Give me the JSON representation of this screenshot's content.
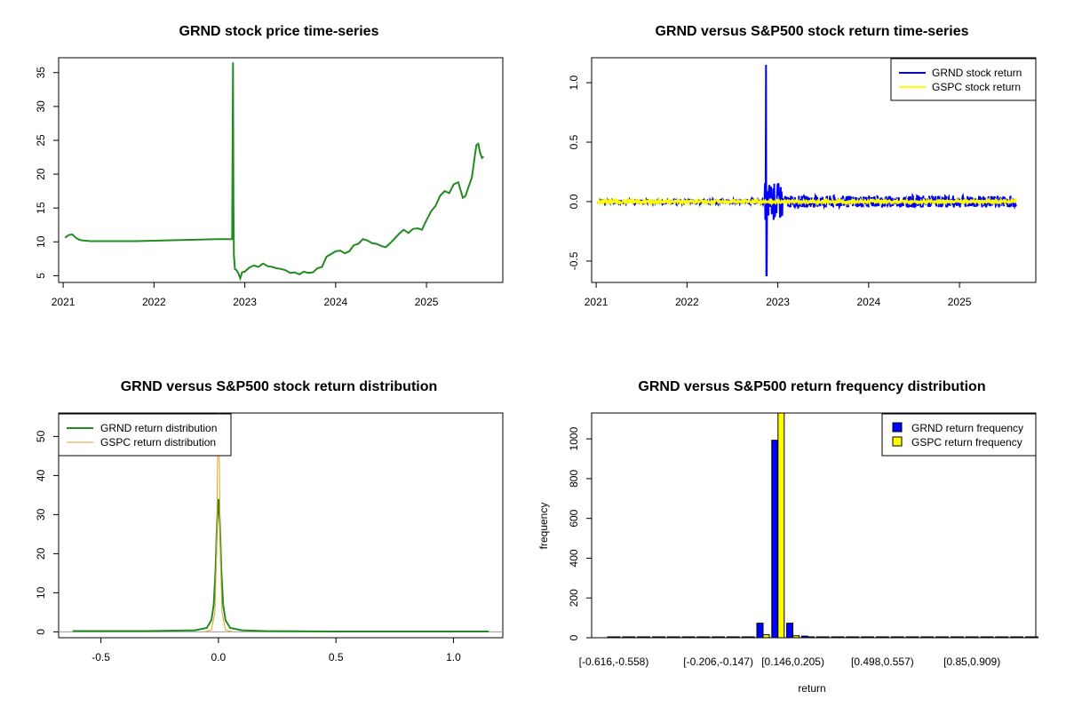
{
  "chart_data": [
    {
      "id": "price",
      "type": "line",
      "title": "GRND stock price time-series",
      "xlabel": "",
      "ylabel": "",
      "xlim": [
        2020.95,
        2025.84
      ],
      "ylim": [
        4.0,
        37.2
      ],
      "x_ticks": [
        2021,
        2022,
        2023,
        2024,
        2025
      ],
      "x_tick_labels": [
        "2021",
        "2022",
        "2023",
        "2024",
        "2025"
      ],
      "y_ticks": [
        5,
        10,
        15,
        20,
        25,
        30,
        35
      ],
      "y_tick_labels": [
        "5",
        "10",
        "15",
        "20",
        "25",
        "30",
        "35"
      ],
      "series": [
        {
          "name": "GRND price",
          "color": "#228B22",
          "x": [
            2021.02,
            2021.06,
            2021.1,
            2021.14,
            2021.18,
            2021.22,
            2021.3,
            2021.5,
            2021.8,
            2022.1,
            2022.4,
            2022.7,
            2022.86,
            2022.87,
            2022.875,
            2022.88,
            2022.885,
            2022.89,
            2022.91,
            2022.93,
            2022.95,
            2022.97,
            2023.0,
            2023.05,
            2023.1,
            2023.15,
            2023.2,
            2023.25,
            2023.3,
            2023.35,
            2023.4,
            2023.45,
            2023.5,
            2023.55,
            2023.6,
            2023.65,
            2023.7,
            2023.75,
            2023.8,
            2023.85,
            2023.9,
            2023.95,
            2024.0,
            2024.05,
            2024.1,
            2024.15,
            2024.2,
            2024.25,
            2024.3,
            2024.35,
            2024.4,
            2024.45,
            2024.5,
            2024.55,
            2024.6,
            2024.65,
            2024.7,
            2024.75,
            2024.8,
            2024.85,
            2024.9,
            2024.95,
            2025.0,
            2025.05,
            2025.1,
            2025.15,
            2025.2,
            2025.25,
            2025.3,
            2025.35,
            2025.4,
            2025.43,
            2025.46,
            2025.5,
            2025.53,
            2025.55,
            2025.57,
            2025.59,
            2025.61,
            2025.63
          ],
          "y": [
            10.6,
            11.0,
            11.1,
            10.6,
            10.3,
            10.2,
            10.1,
            10.1,
            10.1,
            10.2,
            10.3,
            10.4,
            10.4,
            36.5,
            16.0,
            8.0,
            7.0,
            6.0,
            5.8,
            5.3,
            4.6,
            5.5,
            5.6,
            6.2,
            6.5,
            6.3,
            6.8,
            6.4,
            6.3,
            6.1,
            6.0,
            5.8,
            5.4,
            5.5,
            5.2,
            5.6,
            5.4,
            5.5,
            6.1,
            6.3,
            7.8,
            8.2,
            8.6,
            8.7,
            8.3,
            8.6,
            9.5,
            9.7,
            10.4,
            10.2,
            9.8,
            9.7,
            9.4,
            9.2,
            9.8,
            10.5,
            11.2,
            11.8,
            11.3,
            11.9,
            12.0,
            11.8,
            13.2,
            14.5,
            15.3,
            16.8,
            17.5,
            17.2,
            18.5,
            18.8,
            16.5,
            16.8,
            18.0,
            19.5,
            22.5,
            24.3,
            24.5,
            23.2,
            22.4,
            22.6
          ]
        }
      ]
    },
    {
      "id": "returns",
      "type": "line",
      "title": "GRND versus S&P500 stock return time-series",
      "xlabel": "",
      "ylabel": "",
      "xlim": [
        2020.95,
        2025.84
      ],
      "ylim": [
        -0.68,
        1.21
      ],
      "x_ticks": [
        2021,
        2022,
        2023,
        2024,
        2025
      ],
      "x_tick_labels": [
        "2021",
        "2022",
        "2023",
        "2024",
        "2025"
      ],
      "y_ticks": [
        -0.5,
        0.0,
        0.5,
        1.0
      ],
      "y_tick_labels": [
        "-0.5",
        "0.0",
        "0.5",
        "1.0"
      ],
      "legend": {
        "position": "top-right",
        "entries": [
          {
            "label": "GRND stock return",
            "color": "#0000FF"
          },
          {
            "label": "GSPC stock return",
            "color": "#FFFF00"
          }
        ]
      },
      "series": [
        {
          "name": "GRND stock return",
          "color": "#0000FF",
          "amplitude": 0.02,
          "spike_at": 2022.87,
          "spike_high": 1.15,
          "spike_low": -0.62
        },
        {
          "name": "GSPC stock return",
          "color": "#FFFF00",
          "amplitude": 0.02
        }
      ]
    },
    {
      "id": "density",
      "type": "line",
      "title": "GRND versus S&P500 stock return distribution",
      "xlabel": "",
      "ylabel": "",
      "xlim": [
        -0.68,
        1.21
      ],
      "ylim": [
        -1.5,
        56
      ],
      "x_ticks": [
        -0.5,
        0.0,
        0.5,
        1.0
      ],
      "x_tick_labels": [
        "-0.5",
        "0.0",
        "0.5",
        "1.0"
      ],
      "y_ticks": [
        0,
        10,
        20,
        30,
        40,
        50
      ],
      "y_tick_labels": [
        "0",
        "10",
        "20",
        "30",
        "40",
        "50"
      ],
      "legend": {
        "position": "top-left",
        "entries": [
          {
            "label": "GRND return distribution",
            "color": "#228B22"
          },
          {
            "label": "GSPC return distribution",
            "color": "#DAA520"
          }
        ]
      },
      "series": [
        {
          "name": "GRND return distribution",
          "color": "#228B22",
          "x": [
            -0.62,
            -0.3,
            -0.1,
            -0.05,
            -0.03,
            -0.02,
            -0.012,
            -0.006,
            0.0,
            0.006,
            0.012,
            0.02,
            0.03,
            0.05,
            0.1,
            0.2,
            0.5,
            1.15
          ],
          "y": [
            0.2,
            0.2,
            0.4,
            1.0,
            3.0,
            7.0,
            16.0,
            28.0,
            34.0,
            28.0,
            16.0,
            7.0,
            3.0,
            1.0,
            0.4,
            0.2,
            0.1,
            0.1
          ]
        },
        {
          "name": "GSPC return distribution",
          "color": "#DAA520",
          "x": [
            -0.06,
            -0.03,
            -0.015,
            -0.008,
            -0.004,
            0.0,
            0.004,
            0.008,
            0.015,
            0.03,
            0.06
          ],
          "y": [
            0.0,
            0.5,
            5.0,
            20.0,
            42.0,
            56.0,
            42.0,
            20.0,
            5.0,
            0.5,
            0.0
          ]
        }
      ]
    },
    {
      "id": "frequency",
      "type": "bar",
      "title": "GRND versus S&P500 return frequency distribution",
      "xlabel": "return",
      "ylabel": "frequency",
      "ylim": [
        0,
        1130
      ],
      "y_ticks": [
        0,
        200,
        400,
        600,
        800,
        1000
      ],
      "y_tick_labels": [
        "0",
        "200",
        "400",
        "600",
        "800",
        "1000"
      ],
      "x_tick_labels_shown": [
        "[-0.616,-0.558)",
        "[-0.206,-0.147)",
        "[0.146,0.205)",
        "[0.498,0.557)",
        "[0.85,0.909)"
      ],
      "x_tick_label_indices": [
        0,
        7,
        12,
        18,
        24
      ],
      "legend": {
        "position": "top-right",
        "entries": [
          {
            "label": "GRND return frequency",
            "color": "#0000FF"
          },
          {
            "label": "GSPC return frequency",
            "color": "#FFFF00"
          }
        ]
      },
      "series": [
        {
          "name": "GRND return frequency",
          "color": "#0000FF",
          "values": [
            1,
            0,
            0,
            0,
            0,
            0,
            0,
            0,
            1,
            2,
            73,
            993,
            73,
            8,
            2,
            1,
            0,
            0,
            0,
            0,
            0,
            0,
            0,
            0,
            0,
            0,
            0,
            0,
            1
          ]
        },
        {
          "name": "GSPC return frequency",
          "color": "#FFFF00",
          "values": [
            0,
            0,
            0,
            0,
            0,
            0,
            0,
            0,
            0,
            0,
            15,
            1130,
            10,
            0,
            0,
            0,
            0,
            0,
            0,
            0,
            0,
            0,
            0,
            0,
            0,
            0,
            0,
            0,
            0
          ]
        }
      ]
    }
  ]
}
